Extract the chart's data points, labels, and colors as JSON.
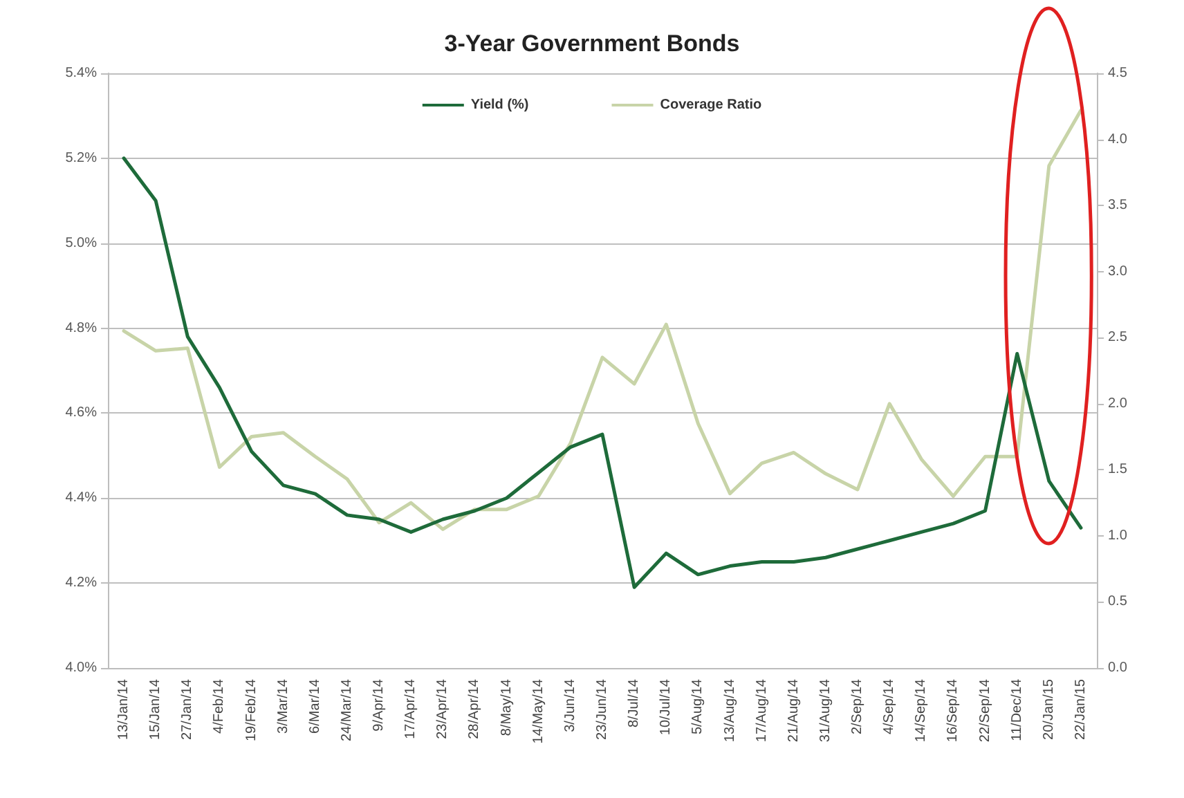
{
  "chart_data": {
    "type": "line",
    "title": "3-Year Government Bonds",
    "categories": [
      "13/Jan/14",
      "15/Jan/14",
      "27/Jan/14",
      "4/Feb/14",
      "19/Feb/14",
      "3/Mar/14",
      "6/Mar/14",
      "24/Mar/14",
      "9/Apr/14",
      "17/Apr/14",
      "23/Apr/14",
      "28/Apr/14",
      "8/May/14",
      "14/May/14",
      "3/Jun/14",
      "23/Jun/14",
      "8/Jul/14",
      "10/Jul/14",
      "5/Aug/14",
      "13/Aug/14",
      "17/Aug/14",
      "21/Aug/14",
      "31/Aug/14",
      "2/Sep/14",
      "4/Sep/14",
      "14/Sep/14",
      "16/Sep/14",
      "22/Sep/14",
      "11/Dec/14",
      "20/Jan/15",
      "22/Jan/15"
    ],
    "series": [
      {
        "name": "Yield (%)",
        "color": "#1e6b3a",
        "values": [
          5.2,
          5.1,
          4.78,
          4.66,
          4.51,
          4.43,
          4.41,
          4.36,
          4.35,
          4.32,
          4.35,
          4.37,
          4.4,
          4.46,
          4.52,
          4.55,
          4.19,
          4.27,
          4.22,
          4.24,
          4.25,
          4.25,
          4.26,
          4.28,
          4.3,
          4.32,
          4.34,
          4.37,
          4.74,
          4.44,
          4.33
        ]
      },
      {
        "name": "Coverage Ratio",
        "color": "#c8d4a8",
        "axis": "y2",
        "values": [
          2.55,
          2.4,
          2.42,
          1.52,
          1.75,
          1.78,
          1.6,
          1.43,
          1.1,
          1.25,
          1.05,
          1.2,
          1.2,
          1.3,
          1.7,
          2.35,
          2.15,
          2.6,
          1.85,
          1.32,
          1.55,
          1.63,
          1.47,
          1.35,
          2.0,
          1.58,
          1.3,
          1.6,
          1.6,
          3.8,
          4.22
        ]
      }
    ],
    "ylim": [
      4.0,
      5.4
    ],
    "yticks": [
      {
        "value": 4.0,
        "label": "4.0%"
      },
      {
        "value": 4.2,
        "label": "4.2%"
      },
      {
        "value": 4.4,
        "label": "4.4%"
      },
      {
        "value": 4.6,
        "label": "4.6%"
      },
      {
        "value": 4.8,
        "label": "4.8%"
      },
      {
        "value": 5.0,
        "label": "5.0%"
      },
      {
        "value": 5.2,
        "label": "5.2%"
      },
      {
        "value": 5.4,
        "label": "5.4%"
      }
    ],
    "y2lim": [
      0,
      4.5
    ],
    "y2ticks": [
      {
        "value": 0,
        "label": "0.0"
      },
      {
        "value": 0.5,
        "label": "0.5"
      },
      {
        "value": 1,
        "label": "1.0"
      },
      {
        "value": 1.5,
        "label": "1.5"
      },
      {
        "value": 2,
        "label": "2.0"
      },
      {
        "value": 2.5,
        "label": "2.5"
      },
      {
        "value": 3,
        "label": "3.0"
      },
      {
        "value": 3.5,
        "label": "3.5"
      },
      {
        "value": 4,
        "label": "4.0"
      },
      {
        "value": 4.5,
        "label": "4.5"
      }
    ],
    "grid": "y",
    "legend": "top",
    "marker": "none",
    "line_style": "solid"
  }
}
